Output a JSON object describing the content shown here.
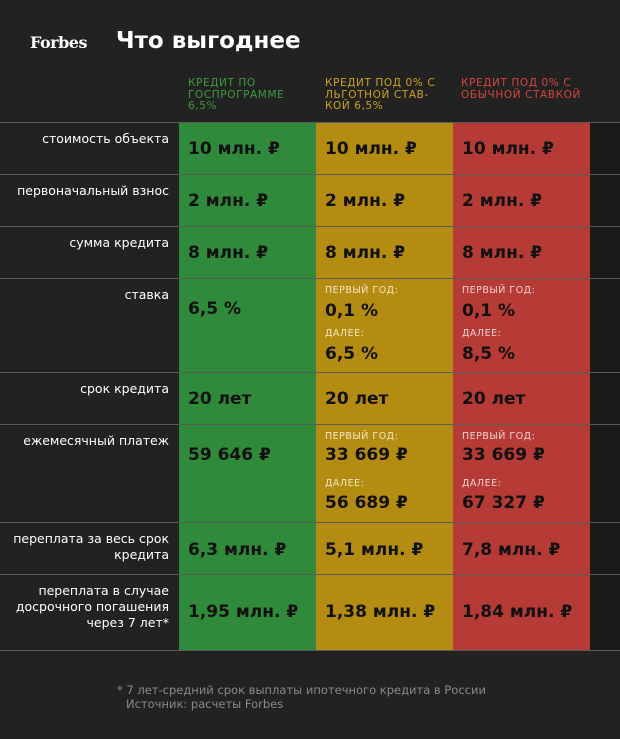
{
  "header": {
    "logo": "Forbes",
    "title": "Что выгоднее"
  },
  "columns": [
    {
      "label": "КРЕДИТ ПО ГОСПРОГРАММЕ 6,5%",
      "color": "#2f8a3b"
    },
    {
      "label": "КРЕДИТ ПОД 0% С ЛЬГОТНОЙ СТАВ-КОЙ 6,5%",
      "color": "#b58c12"
    },
    {
      "label": "КРЕДИТ ПОД 0% С ОБЫЧНОЙ СТАВКОЙ",
      "color": "#b63a35"
    }
  ],
  "rows": {
    "cost": {
      "label": "стоимость объекта",
      "g": "10 млн. ₽",
      "y": "10 млн. ₽",
      "r": "10 млн. ₽"
    },
    "down": {
      "label": "первоначальный взнос",
      "g": "2 млн. ₽",
      "y": "2 млн. ₽",
      "r": "2 млн. ₽"
    },
    "loan": {
      "label": "сумма кредита",
      "g": "8 млн. ₽",
      "y": "8 млн. ₽",
      "r": "8 млн. ₽"
    },
    "rate": {
      "label": "ставка",
      "g": "6,5 %",
      "first_label": "ПЕРВЫЙ ГОД:",
      "then_label": "ДАЛЕЕ:",
      "y_first": "0,1 %",
      "y_then": "6,5 %",
      "r_first": "0,1 %",
      "r_then": "8,5 %"
    },
    "term": {
      "label": "срок кредита",
      "g": "20 лет",
      "y": "20 лет",
      "r": "20 лет"
    },
    "monthly": {
      "label": "ежемесячный платеж",
      "g": "59 646 ₽",
      "first_label": "ПЕРВЫЙ ГОД:",
      "then_label": "ДАЛЕЕ:",
      "y_first": "33 669 ₽",
      "y_then": "56 689 ₽",
      "r_first": "33 669 ₽",
      "r_then": "67 327 ₽"
    },
    "overpay": {
      "label": "переплата за весь срок кредита",
      "g": "6,3 млн. ₽",
      "y": "5,1 млн. ₽",
      "r": "7,8 млн. ₽"
    },
    "early": {
      "label": "переплата в случае досрочного погашения через 7 лет*",
      "g": "1,95 млн. ₽",
      "y": "1,38 млн. ₽",
      "r": "1,84 млн. ₽"
    }
  },
  "footnote": {
    "line1": "* 7 лет-средний срок выплаты ипотечного кредита в России",
    "line2": "Источник: расчеты Forbes"
  }
}
